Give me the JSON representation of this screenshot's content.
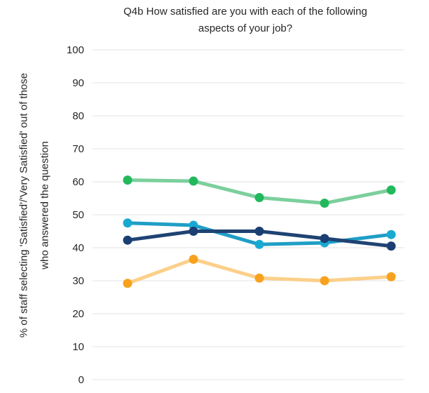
{
  "chart_data": {
    "type": "line",
    "title": "Q4b How satisfied are you with each of the following aspects of your job?",
    "title_lines": [
      "Q4b How satisfied are you with each of the following",
      "aspects of your job?"
    ],
    "ylabel_lines": [
      "% of staff selecting 'Satisfied'/'Very Satisfied' out of those",
      "who answered the question"
    ],
    "ylim": [
      0,
      100
    ],
    "yticks": [
      0,
      10,
      20,
      30,
      40,
      50,
      60,
      70,
      80,
      90,
      100
    ],
    "grid": true,
    "x_count": 5,
    "series": [
      {
        "color": "#7ccf9c",
        "marker": "#22b85c",
        "values": [
          60.5,
          60.2,
          55.2,
          53.5,
          57.5
        ]
      },
      {
        "color": "#1f9ec6",
        "marker": "#18a9d2",
        "values": [
          47.5,
          46.8,
          41.0,
          41.5,
          44.0
        ]
      },
      {
        "color": "#1f4373",
        "marker": "#1b3f73",
        "values": [
          42.3,
          45.0,
          45.0,
          42.8,
          40.5
        ]
      },
      {
        "color": "#fcd08a",
        "marker": "#f7a21e",
        "values": [
          29.2,
          36.5,
          30.8,
          30.0,
          31.2
        ]
      }
    ]
  }
}
